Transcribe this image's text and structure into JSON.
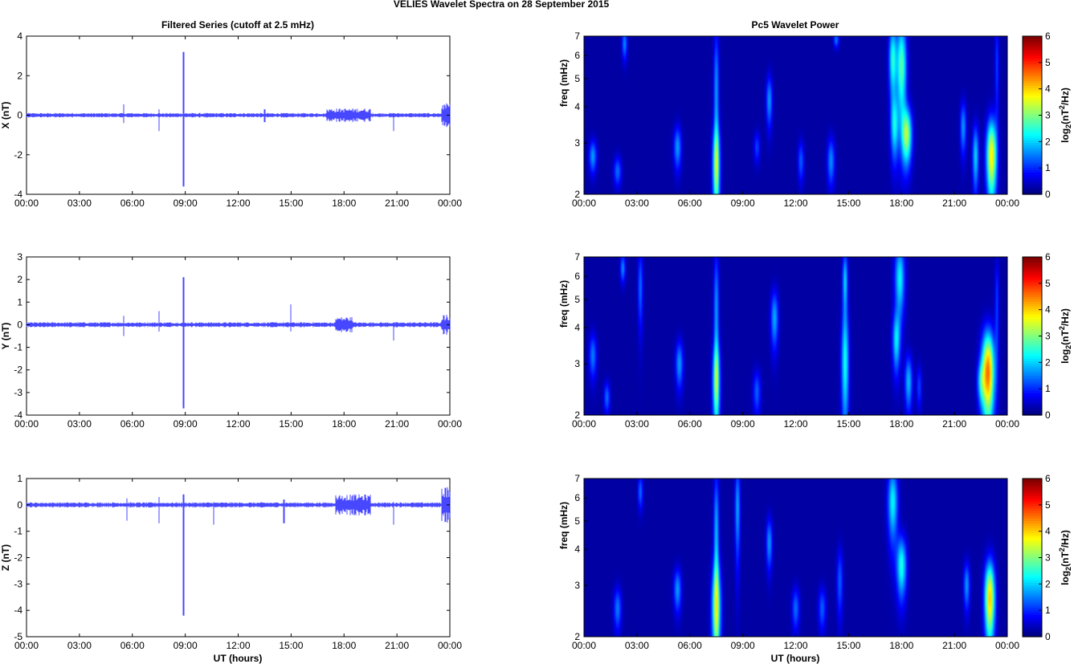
{
  "figure": {
    "title": "VELIES Wavelet Spectra on 28 September 2015",
    "left_title": "Filtered Series (cutoff at 2.5 mHz)",
    "right_title": "Pc5 Wavelet Power",
    "xlabel": "UT (hours)"
  },
  "colors": {
    "trace": "#1a1aff",
    "background_dark": "#00008f",
    "axes": "#000000"
  },
  "chart_data": [
    {
      "type": "line",
      "ylabel": "X (nT)",
      "x_ticks": [
        "00:00",
        "03:00",
        "06:00",
        "09:00",
        "12:00",
        "15:00",
        "18:00",
        "21:00",
        "00:00"
      ],
      "xlim_hours": [
        0,
        24
      ],
      "ylim": [
        -4,
        4
      ],
      "y_ticks": [
        4,
        2,
        0,
        -2,
        -4
      ],
      "baseline_noise": 0.08,
      "spikes": [
        {
          "t": 5.5,
          "min": -0.4,
          "max": 0.55
        },
        {
          "t": 7.5,
          "min": -0.8,
          "max": 0.3
        },
        {
          "t": 8.9,
          "min": -3.6,
          "max": 3.2
        },
        {
          "t": 13.5,
          "min": -0.35,
          "max": 0.3
        },
        {
          "t": 20.8,
          "min": -0.8,
          "max": 0.1
        }
      ],
      "bursts": [
        {
          "t0": 17.0,
          "t1": 19.5,
          "amp": 0.35
        },
        {
          "t0": 23.5,
          "t1": 24.0,
          "amp": 0.6
        }
      ]
    },
    {
      "type": "line",
      "ylabel": "Y (nT)",
      "x_ticks": [
        "00:00",
        "03:00",
        "06:00",
        "09:00",
        "12:00",
        "15:00",
        "18:00",
        "21:00",
        "00:00"
      ],
      "xlim_hours": [
        0,
        24
      ],
      "ylim": [
        -4,
        3
      ],
      "y_ticks": [
        3,
        2,
        1,
        0,
        -1,
        -2,
        -3,
        -4
      ],
      "baseline_noise": 0.08,
      "spikes": [
        {
          "t": 5.5,
          "min": -0.5,
          "max": 0.4
        },
        {
          "t": 7.5,
          "min": -0.3,
          "max": 0.6
        },
        {
          "t": 8.9,
          "min": -3.7,
          "max": 2.1
        },
        {
          "t": 15.0,
          "min": -0.3,
          "max": 0.9
        },
        {
          "t": 20.8,
          "min": -0.7,
          "max": 0.1
        }
      ],
      "bursts": [
        {
          "t0": 17.5,
          "t1": 18.5,
          "amp": 0.35
        },
        {
          "t0": 23.5,
          "t1": 24.0,
          "amp": 0.45
        }
      ]
    },
    {
      "type": "line",
      "ylabel": "Z (nT)",
      "x_ticks": [
        "00:00",
        "03:00",
        "06:00",
        "09:00",
        "12:00",
        "15:00",
        "18:00",
        "21:00",
        "00:00"
      ],
      "xlim_hours": [
        0,
        24
      ],
      "ylim": [
        -5,
        1
      ],
      "y_ticks": [
        1,
        0,
        -1,
        -2,
        -3,
        -4,
        -5
      ],
      "baseline_noise": 0.07,
      "spikes": [
        {
          "t": 5.7,
          "min": -0.6,
          "max": 0.25
        },
        {
          "t": 7.5,
          "min": -0.7,
          "max": 0.3
        },
        {
          "t": 8.9,
          "min": -4.2,
          "max": 0.4
        },
        {
          "t": 10.6,
          "min": -0.75,
          "max": 0.1
        },
        {
          "t": 14.6,
          "min": -0.7,
          "max": 0.2
        },
        {
          "t": 20.8,
          "min": -0.75,
          "max": 0.1
        }
      ],
      "bursts": [
        {
          "t0": 17.5,
          "t1": 19.5,
          "amp": 0.4
        },
        {
          "t0": 23.5,
          "t1": 24.0,
          "amp": 0.7
        }
      ]
    },
    {
      "type": "heatmap",
      "ylabel": "freq (mHz)",
      "colorbar_label": "log2(nT2/Hz)",
      "clim": [
        0,
        6
      ],
      "colorbar_ticks": [
        6,
        5,
        4,
        3,
        2,
        1,
        0
      ],
      "x_ticks": [
        "00:00",
        "03:00",
        "06:00",
        "09:00",
        "12:00",
        "15:00",
        "18:00",
        "21:00",
        "00:00"
      ],
      "xlim_hours": [
        0,
        24
      ],
      "y_ticks": [
        7,
        6,
        5,
        4,
        3,
        2
      ],
      "y_scale": "log",
      "ylim_mhz": [
        2,
        7
      ],
      "blobs": [
        {
          "t": 0.5,
          "f": 2.7,
          "dt": 0.15,
          "df": 0.25,
          "p": 1.6
        },
        {
          "t": 1.9,
          "f": 2.4,
          "dt": 0.15,
          "df": 0.2,
          "p": 1.3
        },
        {
          "t": 2.3,
          "f": 6.6,
          "dt": 0.1,
          "df": 0.6,
          "p": 1.5
        },
        {
          "t": 5.3,
          "f": 2.9,
          "dt": 0.15,
          "df": 0.35,
          "p": 1.6
        },
        {
          "t": 7.5,
          "f": 2.5,
          "dt": 0.15,
          "df": 0.6,
          "p": 2.8
        },
        {
          "t": 7.5,
          "f": 4.5,
          "dt": 0.1,
          "df": 1.8,
          "p": 1.6
        },
        {
          "t": 10.5,
          "f": 4.2,
          "dt": 0.12,
          "df": 0.6,
          "p": 1.6
        },
        {
          "t": 9.8,
          "f": 2.9,
          "dt": 0.12,
          "df": 0.25,
          "p": 1.0
        },
        {
          "t": 12.3,
          "f": 2.6,
          "dt": 0.12,
          "df": 0.3,
          "p": 1.2
        },
        {
          "t": 14.0,
          "f": 2.6,
          "dt": 0.15,
          "df": 0.35,
          "p": 1.5
        },
        {
          "t": 14.3,
          "f": 6.8,
          "dt": 0.1,
          "df": 0.3,
          "p": 1.4
        },
        {
          "t": 17.5,
          "f": 5.8,
          "dt": 0.15,
          "df": 1.2,
          "p": 2.4
        },
        {
          "t": 18.0,
          "f": 5.5,
          "dt": 0.2,
          "df": 1.5,
          "p": 2.8
        },
        {
          "t": 18.3,
          "f": 3.2,
          "dt": 0.2,
          "df": 0.5,
          "p": 3.2
        },
        {
          "t": 17.6,
          "f": 3.4,
          "dt": 0.15,
          "df": 0.6,
          "p": 2.0
        },
        {
          "t": 21.5,
          "f": 3.4,
          "dt": 0.12,
          "df": 0.5,
          "p": 1.6
        },
        {
          "t": 22.2,
          "f": 2.7,
          "dt": 0.12,
          "df": 0.5,
          "p": 2.0
        },
        {
          "t": 23.1,
          "f": 2.7,
          "dt": 0.2,
          "df": 0.6,
          "p": 4.0
        },
        {
          "t": 23.4,
          "f": 5.5,
          "dt": 0.08,
          "df": 1.5,
          "p": 1.0
        }
      ]
    },
    {
      "type": "heatmap",
      "ylabel": "freq (mHz)",
      "colorbar_label": "log2(nT2/Hz)",
      "clim": [
        0,
        6
      ],
      "colorbar_ticks": [
        6,
        5,
        4,
        3,
        2,
        1,
        0
      ],
      "x_ticks": [
        "00:00",
        "03:00",
        "06:00",
        "09:00",
        "12:00",
        "15:00",
        "18:00",
        "21:00",
        "00:00"
      ],
      "xlim_hours": [
        0,
        24
      ],
      "y_ticks": [
        7,
        6,
        5,
        4,
        3,
        2
      ],
      "y_scale": "log",
      "ylim_mhz": [
        2,
        7
      ],
      "blobs": [
        {
          "t": 0.5,
          "f": 3.2,
          "dt": 0.15,
          "df": 0.4,
          "p": 1.4
        },
        {
          "t": 1.3,
          "f": 2.3,
          "dt": 0.12,
          "df": 0.2,
          "p": 1.3
        },
        {
          "t": 2.2,
          "f": 6.4,
          "dt": 0.1,
          "df": 0.5,
          "p": 1.5
        },
        {
          "t": 3.2,
          "f": 5.5,
          "dt": 0.1,
          "df": 1.2,
          "p": 1.3
        },
        {
          "t": 5.4,
          "f": 3.0,
          "dt": 0.15,
          "df": 0.4,
          "p": 1.6
        },
        {
          "t": 7.5,
          "f": 2.6,
          "dt": 0.15,
          "df": 0.6,
          "p": 2.6
        },
        {
          "t": 7.5,
          "f": 4.5,
          "dt": 0.1,
          "df": 1.8,
          "p": 1.6
        },
        {
          "t": 9.8,
          "f": 2.4,
          "dt": 0.15,
          "df": 0.3,
          "p": 1.2
        },
        {
          "t": 10.8,
          "f": 4.3,
          "dt": 0.15,
          "df": 0.7,
          "p": 1.7
        },
        {
          "t": 14.8,
          "f": 3.0,
          "dt": 0.15,
          "df": 1.0,
          "p": 2.3
        },
        {
          "t": 14.8,
          "f": 5.8,
          "dt": 0.1,
          "df": 1.0,
          "p": 2.0
        },
        {
          "t": 17.9,
          "f": 5.9,
          "dt": 0.2,
          "df": 1.2,
          "p": 2.2
        },
        {
          "t": 17.7,
          "f": 3.6,
          "dt": 0.15,
          "df": 0.6,
          "p": 2.0
        },
        {
          "t": 18.4,
          "f": 2.6,
          "dt": 0.15,
          "df": 0.4,
          "p": 1.8
        },
        {
          "t": 19.0,
          "f": 2.5,
          "dt": 0.1,
          "df": 0.3,
          "p": 1.0
        },
        {
          "t": 22.5,
          "f": 2.6,
          "dt": 0.15,
          "df": 0.3,
          "p": 1.5
        },
        {
          "t": 22.9,
          "f": 2.8,
          "dt": 0.25,
          "df": 0.7,
          "p": 4.8
        },
        {
          "t": 23.4,
          "f": 4.8,
          "dt": 0.08,
          "df": 1.4,
          "p": 1.0
        }
      ]
    },
    {
      "type": "heatmap",
      "ylabel": "freq (mHz)",
      "colorbar_label": "log2(nT2/Hz)",
      "clim": [
        0,
        6
      ],
      "colorbar_ticks": [
        6,
        5,
        4,
        3,
        2,
        1,
        0
      ],
      "x_ticks": [
        "00:00",
        "03:00",
        "06:00",
        "09:00",
        "12:00",
        "15:00",
        "18:00",
        "21:00",
        "00:00"
      ],
      "xlim_hours": [
        0,
        24
      ],
      "y_ticks": [
        7,
        6,
        5,
        4,
        3,
        2
      ],
      "y_scale": "log",
      "ylim_mhz": [
        2,
        7
      ],
      "blobs": [
        {
          "t": 1.9,
          "f": 2.5,
          "dt": 0.15,
          "df": 0.3,
          "p": 1.4
        },
        {
          "t": 3.2,
          "f": 6.3,
          "dt": 0.1,
          "df": 0.6,
          "p": 1.3
        },
        {
          "t": 5.3,
          "f": 2.9,
          "dt": 0.15,
          "df": 0.35,
          "p": 1.6
        },
        {
          "t": 7.5,
          "f": 2.5,
          "dt": 0.18,
          "df": 0.7,
          "p": 3.0
        },
        {
          "t": 7.5,
          "f": 4.5,
          "dt": 0.1,
          "df": 1.8,
          "p": 1.8
        },
        {
          "t": 8.7,
          "f": 5.5,
          "dt": 0.1,
          "df": 1.5,
          "p": 1.7
        },
        {
          "t": 10.5,
          "f": 4.2,
          "dt": 0.12,
          "df": 0.6,
          "p": 1.6
        },
        {
          "t": 12.0,
          "f": 2.5,
          "dt": 0.15,
          "df": 0.3,
          "p": 1.3
        },
        {
          "t": 13.5,
          "f": 2.5,
          "dt": 0.15,
          "df": 0.3,
          "p": 1.2
        },
        {
          "t": 14.5,
          "f": 3.1,
          "dt": 0.12,
          "df": 0.6,
          "p": 1.2
        },
        {
          "t": 17.5,
          "f": 5.8,
          "dt": 0.2,
          "df": 1.2,
          "p": 2.2
        },
        {
          "t": 18.0,
          "f": 3.5,
          "dt": 0.2,
          "df": 0.6,
          "p": 2.4
        },
        {
          "t": 21.7,
          "f": 3.0,
          "dt": 0.12,
          "df": 0.4,
          "p": 1.6
        },
        {
          "t": 23.0,
          "f": 2.7,
          "dt": 0.2,
          "df": 0.6,
          "p": 4.2
        }
      ]
    }
  ]
}
